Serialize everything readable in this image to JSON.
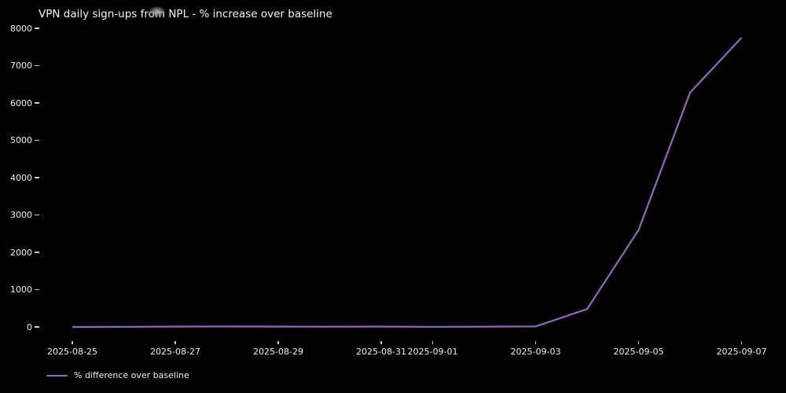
{
  "colors": {
    "background": "#000000",
    "text": "#f0f0f0",
    "title_text": "#f5f5f5",
    "tick_mark": "#c8c8c8",
    "line": "#9467bd"
  },
  "chart_data": {
    "type": "line",
    "title": "VPN daily sign-ups from NPL - % increase over baseline",
    "x": [
      "2025-08-25",
      "2025-08-26",
      "2025-08-27",
      "2025-08-28",
      "2025-08-29",
      "2025-08-30",
      "2025-08-31",
      "2025-09-01",
      "2025-09-02",
      "2025-09-03",
      "2025-09-04",
      "2025-09-05",
      "2025-09-06",
      "2025-09-07"
    ],
    "series": [
      {
        "name": "% difference over baseline",
        "color": "#9467bd",
        "values": [
          0,
          5,
          10,
          12,
          10,
          8,
          10,
          5,
          8,
          15,
          480,
          2600,
          6280,
          7750
        ]
      }
    ],
    "xlabel": "",
    "ylabel": "",
    "ylim": [
      0,
      8000
    ],
    "yticks": [
      0,
      1000,
      2000,
      3000,
      4000,
      5000,
      6000,
      7000,
      8000
    ],
    "xticks": [
      "2025-08-25",
      "2025-08-27",
      "2025-08-29",
      "2025-08-31",
      "2025-09-01",
      "2025-09-03",
      "2025-09-05",
      "2025-09-07"
    ],
    "grid": false,
    "spines": false,
    "legend_position": "lower left, below axis",
    "style": "dark background"
  }
}
